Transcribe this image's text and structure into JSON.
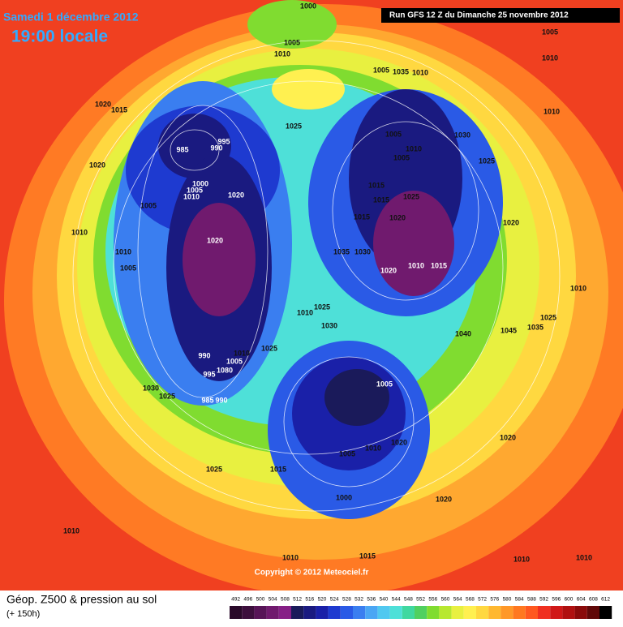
{
  "header": {
    "date": "Samedi 1 décembre 2012",
    "time": "19:00 locale",
    "run": "Run GFS 12 Z du Dimanche 25 novembre 2012"
  },
  "map": {
    "copyright": "Copyright © 2012 Meteociel.fr",
    "isobar_labels": [
      1000,
      1005,
      1010,
      1005,
      1010,
      1005,
      1035,
      1010,
      1020,
      1015,
      1010,
      1025,
      1005,
      1030,
      995,
      985,
      990,
      1010,
      1005,
      1025,
      1020,
      1000,
      1005,
      1010,
      1020,
      1015,
      1015,
      1025,
      1005,
      1020,
      1015,
      1020,
      1010,
      1020,
      1010,
      1035,
      1030,
      1010,
      1015,
      1020,
      1005,
      1010,
      1025,
      1010,
      1025,
      1035,
      1040,
      1045,
      1030,
      1025,
      1010,
      990,
      1005,
      1080,
      995,
      1005,
      1030,
      1025,
      985,
      990,
      1020,
      1010,
      1005,
      1020,
      1025,
      1015,
      1000,
      1020,
      1010,
      1010,
      1015,
      1010,
      1010
    ]
  },
  "legend": {
    "title": "Géop. Z500 & pression au sol",
    "lead": "(+ 150h)",
    "levels": [
      492,
      496,
      500,
      504,
      508,
      512,
      516,
      520,
      524,
      528,
      532,
      536,
      540,
      544,
      548,
      552,
      556,
      560,
      564,
      568,
      572,
      576,
      580,
      584,
      588,
      592,
      596,
      600,
      604,
      608,
      612
    ],
    "colors": [
      "#2a0a2a",
      "#3d0f3d",
      "#571457",
      "#701a6e",
      "#861f86",
      "#1a1a5a",
      "#1a1a80",
      "#1a20a8",
      "#1e3ad0",
      "#2a5ae6",
      "#3a7ef0",
      "#4aa6f4",
      "#50c8f0",
      "#4ee0d8",
      "#40d8a0",
      "#50d060",
      "#80dc30",
      "#b8e830",
      "#e8f040",
      "#fff050",
      "#ffd840",
      "#ffb830",
      "#ff9828",
      "#ff7820",
      "#ff5820",
      "#f03020",
      "#d01818",
      "#b01010",
      "#8a0a0a",
      "#600808",
      "#000000"
    ]
  }
}
